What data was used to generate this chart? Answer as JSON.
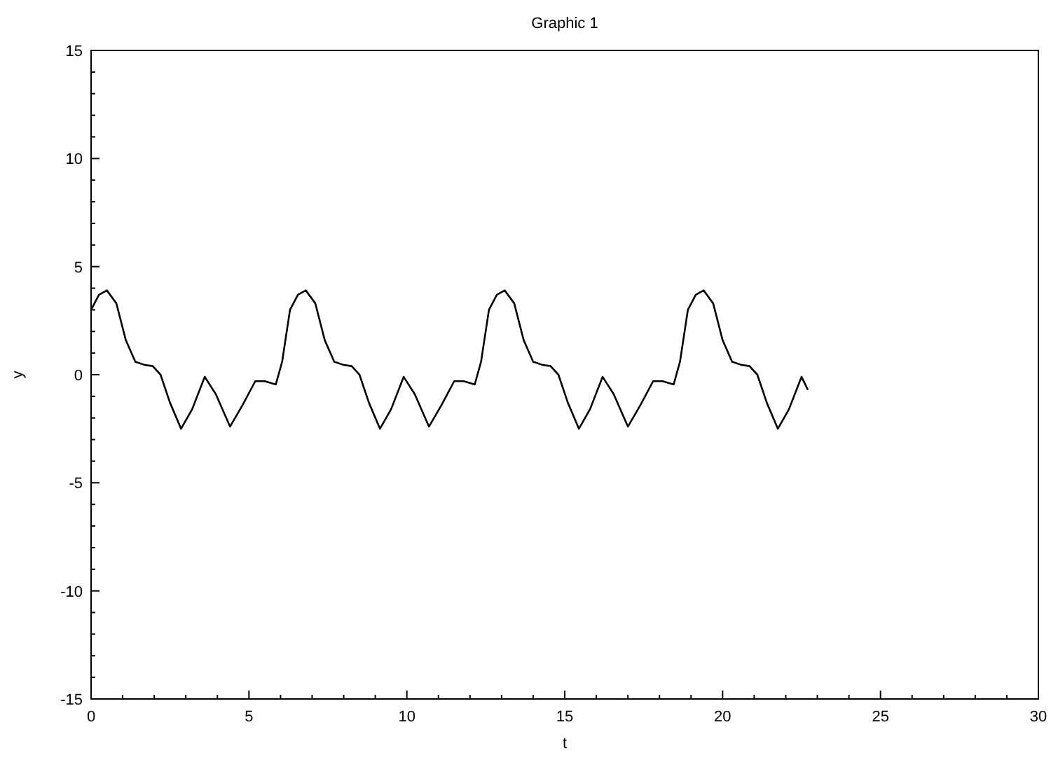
{
  "chart_data": {
    "type": "line",
    "title": "Graphic 1",
    "xlabel": "t",
    "ylabel": "y",
    "grid": false,
    "marker": "none",
    "line_style": "solid",
    "xlim": [
      0,
      30
    ],
    "ylim": [
      -15,
      15
    ],
    "xticks": [
      0,
      {
        "value": 1,
        "label": null
      },
      {
        "value": 2,
        "label": null
      },
      {
        "value": 3,
        "label": null
      },
      {
        "value": 4,
        "label": null
      },
      5,
      {
        "value": 6,
        "label": null
      },
      {
        "value": 7,
        "label": null
      },
      {
        "value": 8,
        "label": null
      },
      {
        "value": 9,
        "label": null
      },
      10,
      {
        "value": 11,
        "label": null
      },
      {
        "value": 12,
        "label": null
      },
      {
        "value": 13,
        "label": null
      },
      {
        "value": 14,
        "label": null
      },
      15,
      {
        "value": 16,
        "label": null
      },
      {
        "value": 17,
        "label": null
      },
      {
        "value": 18,
        "label": null
      },
      {
        "value": 19,
        "label": null
      },
      20,
      {
        "value": 21,
        "label": null
      },
      {
        "value": 22,
        "label": null
      },
      {
        "value": 23,
        "label": null
      },
      {
        "value": 24,
        "label": null
      },
      25,
      {
        "value": 26,
        "label": null
      },
      {
        "value": 27,
        "label": null
      },
      {
        "value": 28,
        "label": null
      },
      {
        "value": 29,
        "label": null
      },
      30
    ],
    "yticks": [
      -15,
      {
        "value": -14,
        "label": null
      },
      {
        "value": -13,
        "label": null
      },
      {
        "value": -12,
        "label": null
      },
      {
        "value": -11,
        "label": null
      },
      -10,
      {
        "value": -9,
        "label": null
      },
      {
        "value": -8,
        "label": null
      },
      {
        "value": -7,
        "label": null
      },
      {
        "value": -6,
        "label": null
      },
      -5,
      {
        "value": -4,
        "label": null
      },
      {
        "value": -3,
        "label": null
      },
      {
        "value": -2,
        "label": null
      },
      {
        "value": -1,
        "label": null
      },
      0,
      {
        "value": 1,
        "label": null
      },
      {
        "value": 2,
        "label": null
      },
      {
        "value": 3,
        "label": null
      },
      {
        "value": 4,
        "label": null
      },
      5,
      {
        "value": 6,
        "label": null
      },
      {
        "value": 7,
        "label": null
      },
      {
        "value": 8,
        "label": null
      },
      {
        "value": 9,
        "label": null
      },
      10,
      {
        "value": 11,
        "label": null
      },
      {
        "value": 12,
        "label": null
      },
      {
        "value": 13,
        "label": null
      },
      {
        "value": 14,
        "label": null
      },
      15
    ],
    "series": [
      {
        "color": "#000000",
        "x": [
          0,
          0.25,
          0.5,
          0.8,
          1.1,
          1.4,
          1.7,
          1.95,
          2.2,
          2.5,
          2.85,
          3.2,
          3.6,
          3.95,
          4.4,
          4.8,
          5.2,
          5.5,
          5.85,
          6.05,
          6.3,
          6.55,
          6.8,
          7.1,
          7.4,
          7.7,
          8,
          8.25,
          8.5,
          8.8,
          9.15,
          9.5,
          9.9,
          10.25,
          10.7,
          11.1,
          11.5,
          11.8,
          12.15,
          12.35,
          12.6,
          12.85,
          13.1,
          13.4,
          13.7,
          14,
          14.3,
          14.55,
          14.8,
          15.1,
          15.45,
          15.8,
          16.2,
          16.55,
          17,
          17.4,
          17.8,
          18.1,
          18.45,
          18.65,
          18.9,
          19.15,
          19.4,
          19.7,
          20,
          20.3,
          20.6,
          20.85,
          21.1,
          21.4,
          21.75,
          22.1,
          22.5,
          22.7
        ],
        "values": [
          3.0,
          3.7,
          3.9,
          3.3,
          1.6,
          0.6,
          0.45,
          0.4,
          0.0,
          -1.3,
          -2.5,
          -1.6,
          -0.1,
          -0.9,
          -2.4,
          -1.4,
          -0.3,
          -0.3,
          -0.45,
          0.6,
          3.0,
          3.7,
          3.9,
          3.3,
          1.6,
          0.6,
          0.45,
          0.4,
          0.0,
          -1.3,
          -2.5,
          -1.6,
          -0.1,
          -0.9,
          -2.4,
          -1.4,
          -0.3,
          -0.3,
          -0.45,
          0.6,
          3.0,
          3.7,
          3.9,
          3.3,
          1.6,
          0.6,
          0.45,
          0.4,
          0.0,
          -1.3,
          -2.5,
          -1.6,
          -0.1,
          -0.9,
          -2.4,
          -1.4,
          -0.3,
          -0.3,
          -0.45,
          0.6,
          3.0,
          3.7,
          3.9,
          3.3,
          1.6,
          0.6,
          0.45,
          0.4,
          0.0,
          -1.3,
          -2.5,
          -1.6,
          -0.1,
          -0.7
        ]
      }
    ]
  }
}
